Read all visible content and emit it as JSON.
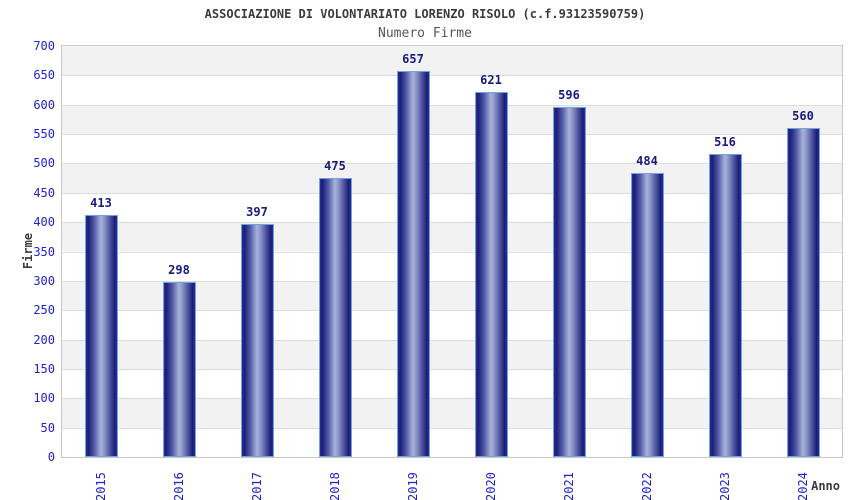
{
  "chart_data": {
    "type": "bar",
    "title": "ASSOCIAZIONE DI VOLONTARIATO LORENZO RISOLO (c.f.93123590759)",
    "subtitle": "Numero Firme",
    "xlabel": "Anno",
    "ylabel": "Firme",
    "categories": [
      "2015",
      "2016",
      "2017",
      "2018",
      "2019",
      "2020",
      "2021",
      "2022",
      "2023",
      "2024"
    ],
    "values": [
      413,
      298,
      397,
      475,
      657,
      621,
      596,
      484,
      516,
      560
    ],
    "ylim": [
      0,
      700
    ],
    "ytick_step": 50,
    "legend": "none",
    "grid": "horizontal gridlines with alternating shaded bands",
    "colors": {
      "bar_dark": "#1a1d78",
      "bar_light": "#a9b2da",
      "bar_border": "#6fa3dc",
      "tick_label": "#2222cc",
      "value_label": "#191980",
      "title_text": "#3c3c3c",
      "subtitle_text": "#575757",
      "band_shaded": "#f2f2f2",
      "band_plain": "#ffffff",
      "gridline": "#dcdcdc",
      "plot_border": "#c8c8c8"
    }
  }
}
